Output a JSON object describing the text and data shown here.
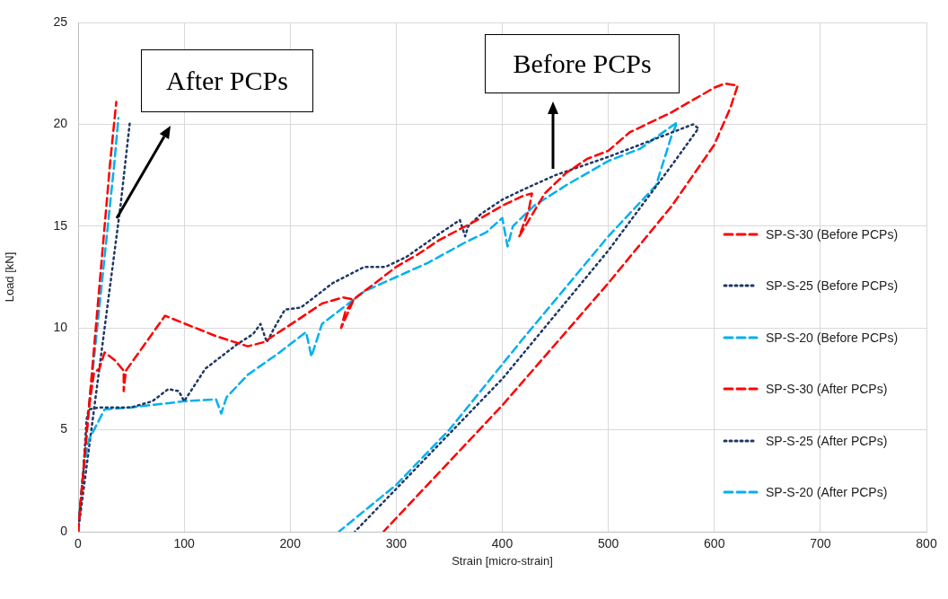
{
  "chart_data": {
    "type": "line",
    "xlabel": "Strain [micro-strain]",
    "ylabel": "Load [kN]",
    "xlim": [
      0,
      800
    ],
    "xticks": [
      0,
      100,
      200,
      300,
      400,
      500,
      600,
      700,
      800
    ],
    "ylim": [
      0,
      25
    ],
    "yticks": [
      0,
      5,
      10,
      15,
      20,
      25
    ],
    "grid": true,
    "legend": "right",
    "marker": "none",
    "annotations": [
      "After PCPs",
      "Before PCPs"
    ],
    "series": [
      {
        "name": "SP-S-30 (Before PCPs)",
        "color": "#ff0000",
        "line_style": "dashed",
        "x": [
          0,
          5,
          10,
          15,
          20,
          25,
          35,
          43,
          43,
          45,
          82,
          130,
          160,
          175,
          210,
          230,
          250,
          260,
          248,
          252,
          262,
          280,
          300,
          320,
          340,
          380,
          400,
          420,
          428,
          425,
          416,
          440,
          460,
          480,
          500,
          520,
          560,
          600,
          610,
          622,
          615,
          600,
          560,
          500,
          400,
          288
        ],
        "values": [
          0,
          3,
          6,
          7.8,
          8,
          8.8,
          8.4,
          7.9,
          6.9,
          7.9,
          10.6,
          9.6,
          9.1,
          9.3,
          10.5,
          11.2,
          11.5,
          11.4,
          10,
          10.8,
          11.5,
          12.2,
          13,
          13.6,
          14.3,
          15.4,
          16,
          16.5,
          16.6,
          15.8,
          14.5,
          16.6,
          17.6,
          18.3,
          18.7,
          19.6,
          20.6,
          21.8,
          22,
          21.9,
          20.8,
          19,
          16,
          12.2,
          6.2,
          0
        ]
      },
      {
        "name": "SP-S-25 (Before PCPs)",
        "color": "#1f3864",
        "line_style": "dotted",
        "x": [
          0,
          5,
          8,
          10,
          20,
          50,
          70,
          85,
          95,
          100,
          120,
          150,
          165,
          172,
          178,
          185,
          195,
          210,
          240,
          270,
          290,
          310,
          340,
          360,
          365,
          368,
          380,
          400,
          420,
          450,
          500,
          550,
          580,
          585,
          560,
          500,
          400,
          261
        ],
        "values": [
          0,
          3,
          5.5,
          6,
          6.1,
          6.1,
          6.4,
          7,
          6.9,
          6.4,
          8,
          9.2,
          9.7,
          10.2,
          9.3,
          10,
          10.9,
          11,
          12.2,
          13,
          13,
          13.5,
          14.6,
          15.3,
          14.5,
          15,
          15.6,
          16.3,
          16.8,
          17.5,
          18.4,
          19.4,
          20,
          19.8,
          18,
          13.8,
          7.5,
          0
        ]
      },
      {
        "name": "SP-S-20 (Before PCPs)",
        "color": "#00b0f0",
        "line_style": "dashed",
        "x": [
          0,
          5,
          10,
          25,
          50,
          100,
          130,
          135,
          140,
          160,
          190,
          215,
          220,
          230,
          250,
          270,
          300,
          330,
          365,
          385,
          400,
          405,
          410,
          430,
          460,
          500,
          530,
          565,
          560,
          545,
          500,
          420,
          350,
          300,
          246
        ],
        "values": [
          0,
          3,
          4.5,
          6,
          6.1,
          6.4,
          6.5,
          5.8,
          6.6,
          7.7,
          8.8,
          9.8,
          8.6,
          10.2,
          11,
          11.8,
          12.5,
          13.2,
          14.2,
          14.7,
          15.4,
          14,
          15,
          16,
          17,
          18.2,
          18.8,
          20.1,
          19.5,
          17,
          14.5,
          9.5,
          5,
          2.3,
          0
        ]
      },
      {
        "name": "SP-S-30 (After PCPs)",
        "color": "#ff0000",
        "line_style": "dashed",
        "x": [
          0,
          10,
          20,
          30,
          36
        ],
        "values": [
          0,
          6,
          12,
          18,
          21.1
        ]
      },
      {
        "name": "SP-S-25 (After PCPs)",
        "color": "#1f3864",
        "line_style": "dotted",
        "x": [
          0,
          15,
          25,
          40,
          49
        ],
        "values": [
          0,
          6,
          10,
          16,
          20.2
        ]
      },
      {
        "name": "SP-S-20 (After PCPs)",
        "color": "#00b0f0",
        "line_style": "dashed",
        "x": [
          0,
          10,
          22,
          34,
          38
        ],
        "values": [
          0,
          6,
          12,
          18,
          20.3
        ]
      }
    ]
  }
}
